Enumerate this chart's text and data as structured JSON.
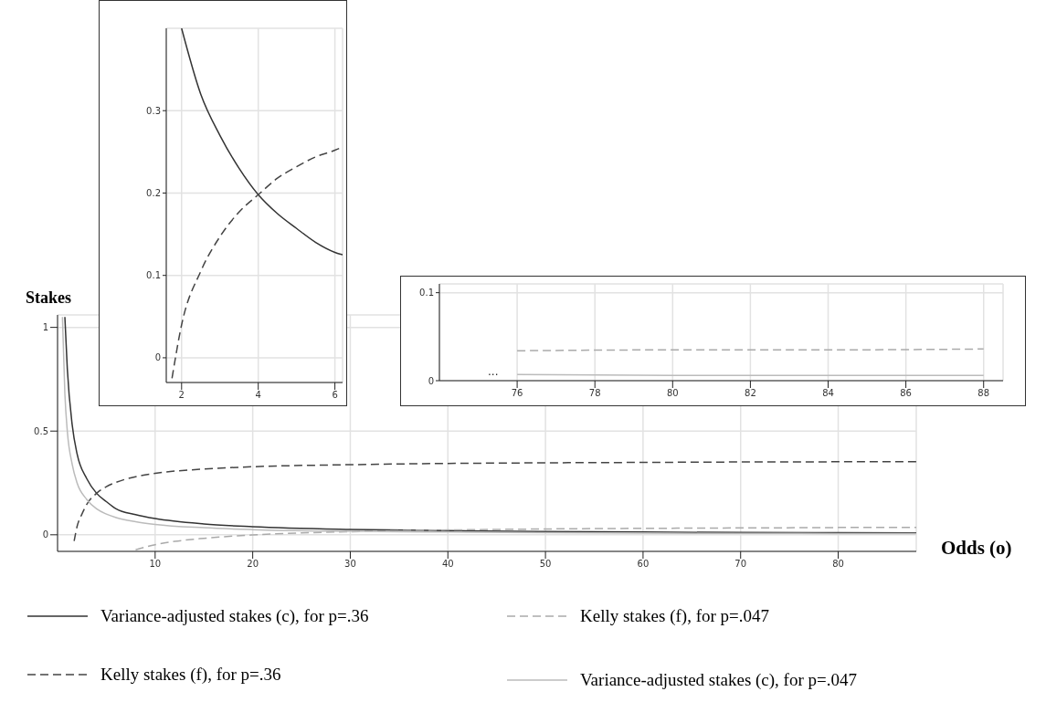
{
  "chart_data": [
    {
      "type": "line",
      "xlabel": "Odds (o)",
      "ylabel": "Stakes",
      "xlim": [
        0,
        88
      ],
      "xticks": [
        10,
        20,
        30,
        40,
        50,
        60,
        70,
        80
      ],
      "ylim": [
        -0.08,
        1.06
      ],
      "yticks": [
        0,
        0.5,
        1
      ],
      "grid": true,
      "legend": "bottom",
      "series": [
        {
          "name": "Variance-adjusted stakes (c), for p=.36",
          "color": "#333333",
          "line_style": "solid",
          "x": [
            0.75,
            1,
            1.5,
            2,
            3,
            4,
            5,
            6,
            8,
            10,
            15,
            20,
            30,
            40,
            50,
            60,
            70,
            80,
            88
          ],
          "values": [
            1.05,
            0.8,
            0.53,
            0.39,
            0.27,
            0.2,
            0.16,
            0.125,
            0.097,
            0.078,
            0.052,
            0.039,
            0.026,
            0.02,
            0.016,
            0.013,
            0.011,
            0.01,
            0.009
          ]
        },
        {
          "name": "Kelly stakes (f), for p=.36",
          "color": "#444444",
          "line_style": "dashed",
          "x": [
            1.7,
            2,
            2.5,
            3,
            4,
            5,
            6,
            8,
            10,
            15,
            20,
            30,
            40,
            50,
            60,
            70,
            80,
            88
          ],
          "values": [
            -0.03,
            0.04,
            0.1,
            0.147,
            0.2,
            0.232,
            0.253,
            0.28,
            0.296,
            0.317,
            0.328,
            0.338,
            0.344,
            0.347,
            0.349,
            0.351,
            0.352,
            0.353
          ]
        },
        {
          "name": "Kelly stakes (f), for p=.047",
          "color": "#aaaaaa",
          "line_style": "dashed",
          "x": [
            8,
            10,
            12,
            15,
            20,
            25,
            30,
            40,
            50,
            60,
            70,
            76,
            80,
            88
          ],
          "values": [
            -0.072,
            -0.048,
            -0.032,
            -0.017,
            -0.001,
            0.009,
            0.015,
            0.023,
            0.028,
            0.031,
            0.033,
            0.034,
            0.035,
            0.036
          ]
        },
        {
          "name": "Variance-adjusted stakes (c), for p=.047",
          "color": "#bbbbbb",
          "line_style": "solid",
          "x": [
            0.5,
            0.75,
            1,
            1.5,
            2,
            3,
            4,
            5,
            6,
            8,
            10,
            15,
            20,
            30,
            40,
            50,
            60,
            70,
            76,
            80,
            88
          ],
          "values": [
            1.05,
            0.68,
            0.5,
            0.34,
            0.25,
            0.17,
            0.125,
            0.1,
            0.083,
            0.063,
            0.05,
            0.034,
            0.025,
            0.017,
            0.013,
            0.01,
            0.008,
            0.007,
            0.007,
            0.006,
            0.006
          ]
        }
      ]
    },
    {
      "type": "line",
      "xlim": [
        1.6,
        6.2
      ],
      "xticks": [
        2,
        4,
        6
      ],
      "ylim": [
        -0.03,
        0.4
      ],
      "yticks": [
        0,
        0.1,
        0.2,
        0.3
      ],
      "grid": true,
      "series": [
        {
          "color": "#333333",
          "line_style": "solid",
          "x": [
            2,
            2.5,
            3,
            3.5,
            4,
            4.5,
            5,
            5.5,
            6,
            6.2
          ],
          "values": [
            0.4,
            0.32,
            0.27,
            0.23,
            0.198,
            0.175,
            0.157,
            0.14,
            0.128,
            0.125
          ]
        },
        {
          "color": "#444444",
          "line_style": "dashed",
          "x": [
            1.75,
            2,
            2.5,
            3,
            3.5,
            4,
            4.5,
            5,
            5.5,
            6,
            6.2
          ],
          "values": [
            -0.025,
            0.04,
            0.105,
            0.147,
            0.177,
            0.198,
            0.218,
            0.232,
            0.244,
            0.252,
            0.256
          ]
        }
      ]
    },
    {
      "type": "line",
      "xlim": [
        74,
        88.5
      ],
      "xticks": [
        76,
        78,
        80,
        82,
        84,
        86,
        88
      ],
      "ylim": [
        0,
        0.11
      ],
      "yticks": [
        0,
        0.1
      ],
      "grid": true,
      "annotations": [
        "..."
      ],
      "series": [
        {
          "color": "#aaaaaa",
          "line_style": "dashed",
          "x": [
            76,
            80,
            84,
            88
          ],
          "values": [
            0.034,
            0.035,
            0.035,
            0.036
          ]
        },
        {
          "color": "#bbbbbb",
          "line_style": "solid",
          "x": [
            76,
            80,
            84,
            88
          ],
          "values": [
            0.007,
            0.006,
            0.006,
            0.006
          ]
        }
      ]
    }
  ]
}
